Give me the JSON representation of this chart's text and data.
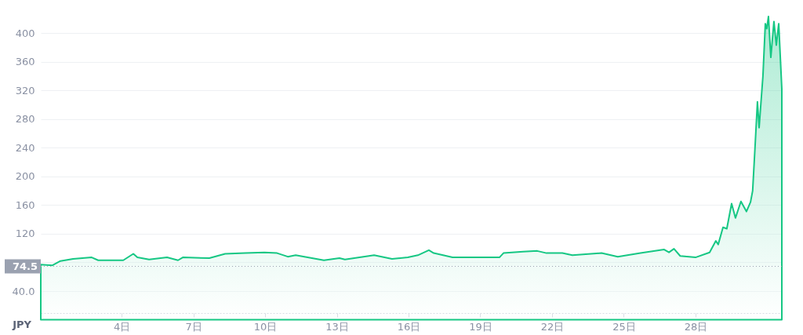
{
  "chart_data": {
    "type": "area",
    "ylabel": "JPY",
    "xlim": [
      0.62,
      31.61
    ],
    "ylim": [
      9.4,
      446
    ],
    "xticks": [
      {
        "value": 4,
        "label": "4日"
      },
      {
        "value": 7,
        "label": "7日"
      },
      {
        "value": 10,
        "label": "10日"
      },
      {
        "value": 13,
        "label": "13日"
      },
      {
        "value": 16,
        "label": "16日"
      },
      {
        "value": 19,
        "label": "19日"
      },
      {
        "value": 22,
        "label": "22日"
      },
      {
        "value": 25,
        "label": "25日"
      },
      {
        "value": 28,
        "label": "28日"
      }
    ],
    "yticks": [
      {
        "value": 40,
        "label": "40.0"
      },
      {
        "value": 80,
        "label": null
      },
      120,
      160,
      200,
      240,
      280,
      320,
      360,
      400
    ],
    "grid": "y",
    "ref_lines": [
      {
        "axis": "y",
        "value": 74.5,
        "label": "74.5",
        "color": "#9aa1b0",
        "line_style": "dotted"
      }
    ],
    "series": [
      {
        "color": "#16c784",
        "x": [
          0.62,
          1.11,
          1.44,
          1.97,
          2.75,
          3.02,
          4.07,
          4.49,
          4.66,
          5.15,
          5.9,
          6.36,
          6.56,
          7.67,
          8.33,
          9.18,
          9.97,
          10.5,
          10.95,
          11.28,
          12.46,
          13.11,
          13.34,
          14.56,
          15.31,
          15.97,
          16.39,
          16.85,
          17.05,
          17.84,
          18.69,
          19.8,
          19.97,
          20.79,
          21.38,
          21.77,
          22.43,
          22.85,
          24.07,
          24.75,
          25.7,
          26.69,
          26.89,
          27.1,
          27.36,
          28.0,
          28.59,
          28.85,
          28.95,
          29.15,
          29.31,
          29.51,
          29.67,
          29.9,
          30.13,
          30.3,
          30.39,
          30.49,
          30.59,
          30.66,
          30.72,
          30.82,
          30.92,
          30.98,
          31.05,
          31.15,
          31.28,
          31.38,
          31.48,
          31.61
        ],
        "values": [
          77,
          76,
          82,
          85,
          87,
          83,
          83,
          92,
          87,
          84,
          87,
          83,
          87,
          86,
          92,
          93,
          94,
          93,
          88,
          90,
          83,
          86,
          84,
          90,
          85,
          87,
          90,
          97,
          93,
          87,
          87,
          87,
          93,
          95,
          96,
          93,
          93,
          90,
          93,
          88,
          93,
          98,
          94,
          99,
          89,
          87,
          94,
          110,
          105,
          129,
          127,
          162,
          142,
          165,
          151,
          164,
          180,
          241,
          304,
          268,
          295,
          340,
          413,
          406,
          423,
          366,
          416,
          383,
          413,
          322
        ]
      }
    ]
  }
}
